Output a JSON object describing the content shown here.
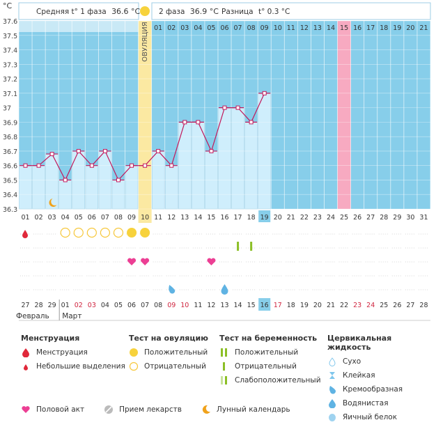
{
  "header": {
    "degree_label": "°C",
    "phase1_text": "Средняя t° 1 фаза",
    "phase1_value": "36.6 °C",
    "phase2_text": "2 фаза",
    "phase2_value": "36.9 °C",
    "diff_text": "Разница",
    "diff_value": "t° 0.3 °C",
    "ovulation_label": "ОВУЛЯЦИЯ"
  },
  "chart_data": {
    "type": "area",
    "ylim": [
      36.3,
      37.6
    ],
    "y_ticks": [
      "36.3",
      "36.4",
      "36.5",
      "36.6",
      "36.7",
      "36.8",
      "36.9",
      "37",
      "37.1",
      "37.2",
      "37.3",
      "37.4",
      "37.5",
      "37.6"
    ],
    "top_labels": [
      "",
      "",
      "",
      "",
      "",
      "",
      "",
      "",
      "",
      "",
      "01",
      "02",
      "03",
      "04",
      "05",
      "06",
      "07",
      "08",
      "09",
      "10",
      "11",
      "12",
      "13",
      "14",
      "15",
      "16",
      "17",
      "18",
      "19",
      "20",
      "21"
    ],
    "cycle_days": [
      "01",
      "02",
      "03",
      "04",
      "05",
      "06",
      "07",
      "08",
      "09",
      "10",
      "11",
      "12",
      "13",
      "14",
      "15",
      "16",
      "17",
      "18",
      "19",
      "20",
      "21",
      "22",
      "23",
      "24",
      "25",
      "26",
      "27",
      "28",
      "29",
      "30",
      "31"
    ],
    "temperatures": [
      36.6,
      36.6,
      36.68,
      36.5,
      36.7,
      36.6,
      36.7,
      36.5,
      36.6,
      36.6,
      36.7,
      36.6,
      36.9,
      36.9,
      36.7,
      37.0,
      37.0,
      36.9,
      37.1,
      null,
      null,
      null,
      null,
      null,
      null,
      null,
      null,
      null,
      null,
      null,
      null
    ],
    "ovulation_day": "10",
    "current_day": "19",
    "highlight_day": "25",
    "moon_day": "03",
    "calendar_dates": [
      {
        "label": "27",
        "color": "#333"
      },
      {
        "label": "28",
        "color": "#333"
      },
      {
        "label": "29",
        "color": "#333"
      },
      {
        "label": "01",
        "color": "#333"
      },
      {
        "label": "02",
        "color": "#d0253f"
      },
      {
        "label": "03",
        "color": "#d0253f"
      },
      {
        "label": "04",
        "color": "#333"
      },
      {
        "label": "05",
        "color": "#333"
      },
      {
        "label": "06",
        "color": "#333"
      },
      {
        "label": "07",
        "color": "#333"
      },
      {
        "label": "08",
        "color": "#333"
      },
      {
        "label": "09",
        "color": "#d0253f"
      },
      {
        "label": "10",
        "color": "#d0253f"
      },
      {
        "label": "11",
        "color": "#333"
      },
      {
        "label": "12",
        "color": "#333"
      },
      {
        "label": "13",
        "color": "#333"
      },
      {
        "label": "14",
        "color": "#333"
      },
      {
        "label": "15",
        "color": "#333"
      },
      {
        "label": "16",
        "color": "#333"
      },
      {
        "label": "17",
        "color": "#d0253f"
      },
      {
        "label": "18",
        "color": "#333"
      },
      {
        "label": "19",
        "color": "#333"
      },
      {
        "label": "20",
        "color": "#333"
      },
      {
        "label": "21",
        "color": "#333"
      },
      {
        "label": "22",
        "color": "#333"
      },
      {
        "label": "23",
        "color": "#d0253f"
      },
      {
        "label": "24",
        "color": "#d0253f"
      },
      {
        "label": "25",
        "color": "#333"
      },
      {
        "label": "26",
        "color": "#333"
      },
      {
        "label": "27",
        "color": "#333"
      },
      {
        "label": "28",
        "color": "#333"
      }
    ],
    "month_labels": [
      "Февраль",
      "Март"
    ],
    "month_start_index": 3,
    "today_calendar_index": 18,
    "markers": {
      "menstruation": [
        "01"
      ],
      "ovulation_test_negative": [
        "04",
        "05",
        "06",
        "07",
        "08"
      ],
      "ovulation_test_positive": [
        "09",
        "10"
      ],
      "pregnancy_test_positive": [
        "17",
        "18"
      ],
      "intercourse": [
        "09",
        "10",
        "15"
      ],
      "fluid_creamy": [
        "12"
      ],
      "fluid_watery": [
        "16"
      ]
    },
    "colors": {
      "plot_bg": "#87ceea",
      "bar_fill": "#cfeefc",
      "bar_edge": "#8ec7e2",
      "line": "#c2185b",
      "ovulation_band": "#fbe9a2",
      "highlight": "#f7aac1",
      "today": "#87ceea"
    }
  },
  "legend": {
    "menstruation": {
      "title": "Менструация",
      "items": [
        "Менструация",
        "Небольшие выделения"
      ]
    },
    "ovulation_test": {
      "title": "Тест на овуляцию",
      "items": [
        "Положительный",
        "Отрицательный"
      ]
    },
    "pregnancy_test": {
      "title": "Тест на беременность",
      "items": [
        "Положительный",
        "Отрицательный",
        "Слабоположительный"
      ]
    },
    "cervical_fluid": {
      "title": "Цервикальная жидкость",
      "items": [
        "Сухо",
        "Клейкая",
        "Кремообразная",
        "Водянистая",
        "Яичный белок"
      ]
    },
    "other": {
      "items": [
        "Половой акт",
        "Прием лекарств",
        "Лунный календарь"
      ]
    }
  }
}
